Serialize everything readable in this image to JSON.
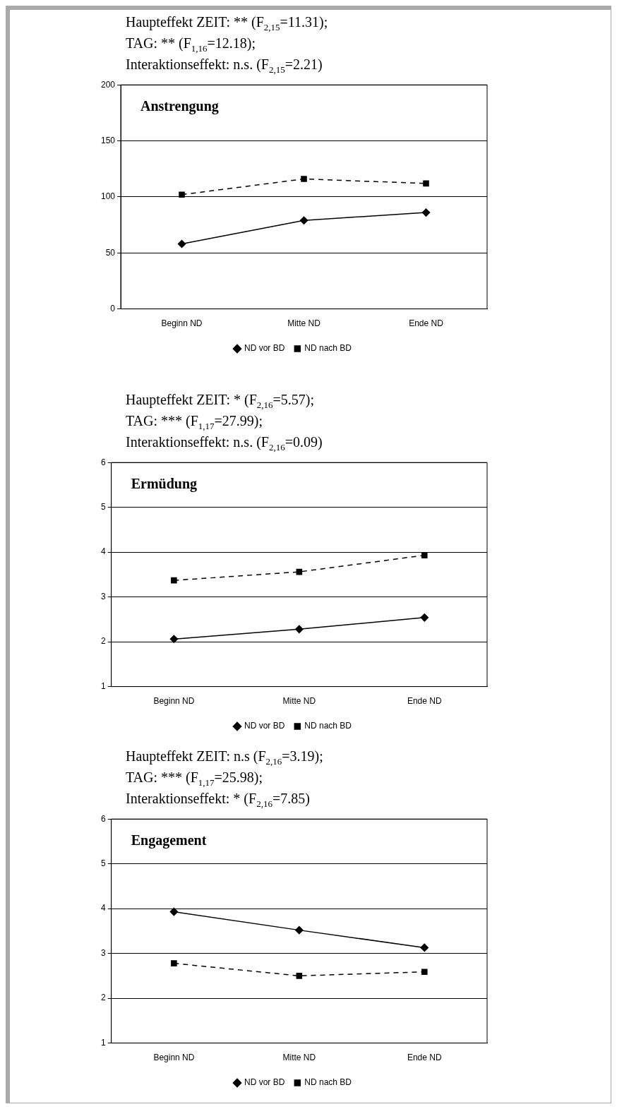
{
  "chart_data": [
    {
      "type": "line",
      "title": "Anstrengung",
      "annotations": [
        "Haupteffekt ZEIT: ** (F$_{2,15}$=11.31);",
        "TAG: ** (F$_{1,16}$=12.18);",
        "Interaktionseffekt: n.s. (F$_{2,15}$=2.21)"
      ],
      "categories": [
        "Beginn ND",
        "Mitte ND",
        "Ende ND"
      ],
      "series": [
        {
          "name": "ND vor BD",
          "color": "#000000",
          "marker": "diamond",
          "line_style": "solid",
          "values": [
            58,
            79,
            86
          ]
        },
        {
          "name": "ND nach BD",
          "color": "#000000",
          "marker": "square",
          "line_style": "dashed",
          "values": [
            102,
            116,
            112
          ]
        }
      ],
      "ylim": [
        0,
        200
      ],
      "yticks": [
        0,
        50,
        100,
        150,
        200
      ],
      "grid": "y",
      "legend": "bottom"
    },
    {
      "type": "line",
      "title": "Ermüdung",
      "annotations": [
        "Haupteffekt ZEIT: * (F$_{2,16}$=5.57);",
        "TAG: *** (F$_{1,17}$=27.99);",
        "Interaktionseffekt: n.s. (F$_{2,16}$=0.09)"
      ],
      "categories": [
        "Beginn ND",
        "Mitte ND",
        "Ende ND"
      ],
      "series": [
        {
          "name": "ND vor BD",
          "color": "#000000",
          "marker": "diamond",
          "line_style": "solid",
          "values": [
            2.06,
            2.28,
            2.54
          ]
        },
        {
          "name": "ND nach BD",
          "color": "#000000",
          "marker": "square",
          "line_style": "dashed",
          "values": [
            3.37,
            3.56,
            3.93
          ]
        }
      ],
      "ylim": [
        1,
        6
      ],
      "yticks": [
        1,
        2,
        3,
        4,
        5,
        6
      ],
      "grid": "y",
      "legend": "bottom"
    },
    {
      "type": "line",
      "title": "Engagement",
      "annotations": [
        "Haupteffekt ZEIT: n.s (F$_{2,16}$=3.19);",
        "TAG: *** (F$_{1,17}$=25.98);",
        "Interaktionseffekt: * (F$_{2,16}$=7.85)"
      ],
      "categories": [
        "Beginn ND",
        "Mitte ND",
        "Ende ND"
      ],
      "series": [
        {
          "name": "ND vor BD",
          "color": "#000000",
          "marker": "diamond",
          "line_style": "solid",
          "values": [
            3.93,
            3.52,
            3.13
          ]
        },
        {
          "name": "ND nach BD",
          "color": "#000000",
          "marker": "square",
          "line_style": "dashed",
          "values": [
            2.78,
            2.5,
            2.59
          ]
        }
      ],
      "ylim": [
        1,
        6
      ],
      "yticks": [
        1,
        2,
        3,
        4,
        5,
        6
      ],
      "grid": "y",
      "legend": "bottom"
    }
  ]
}
